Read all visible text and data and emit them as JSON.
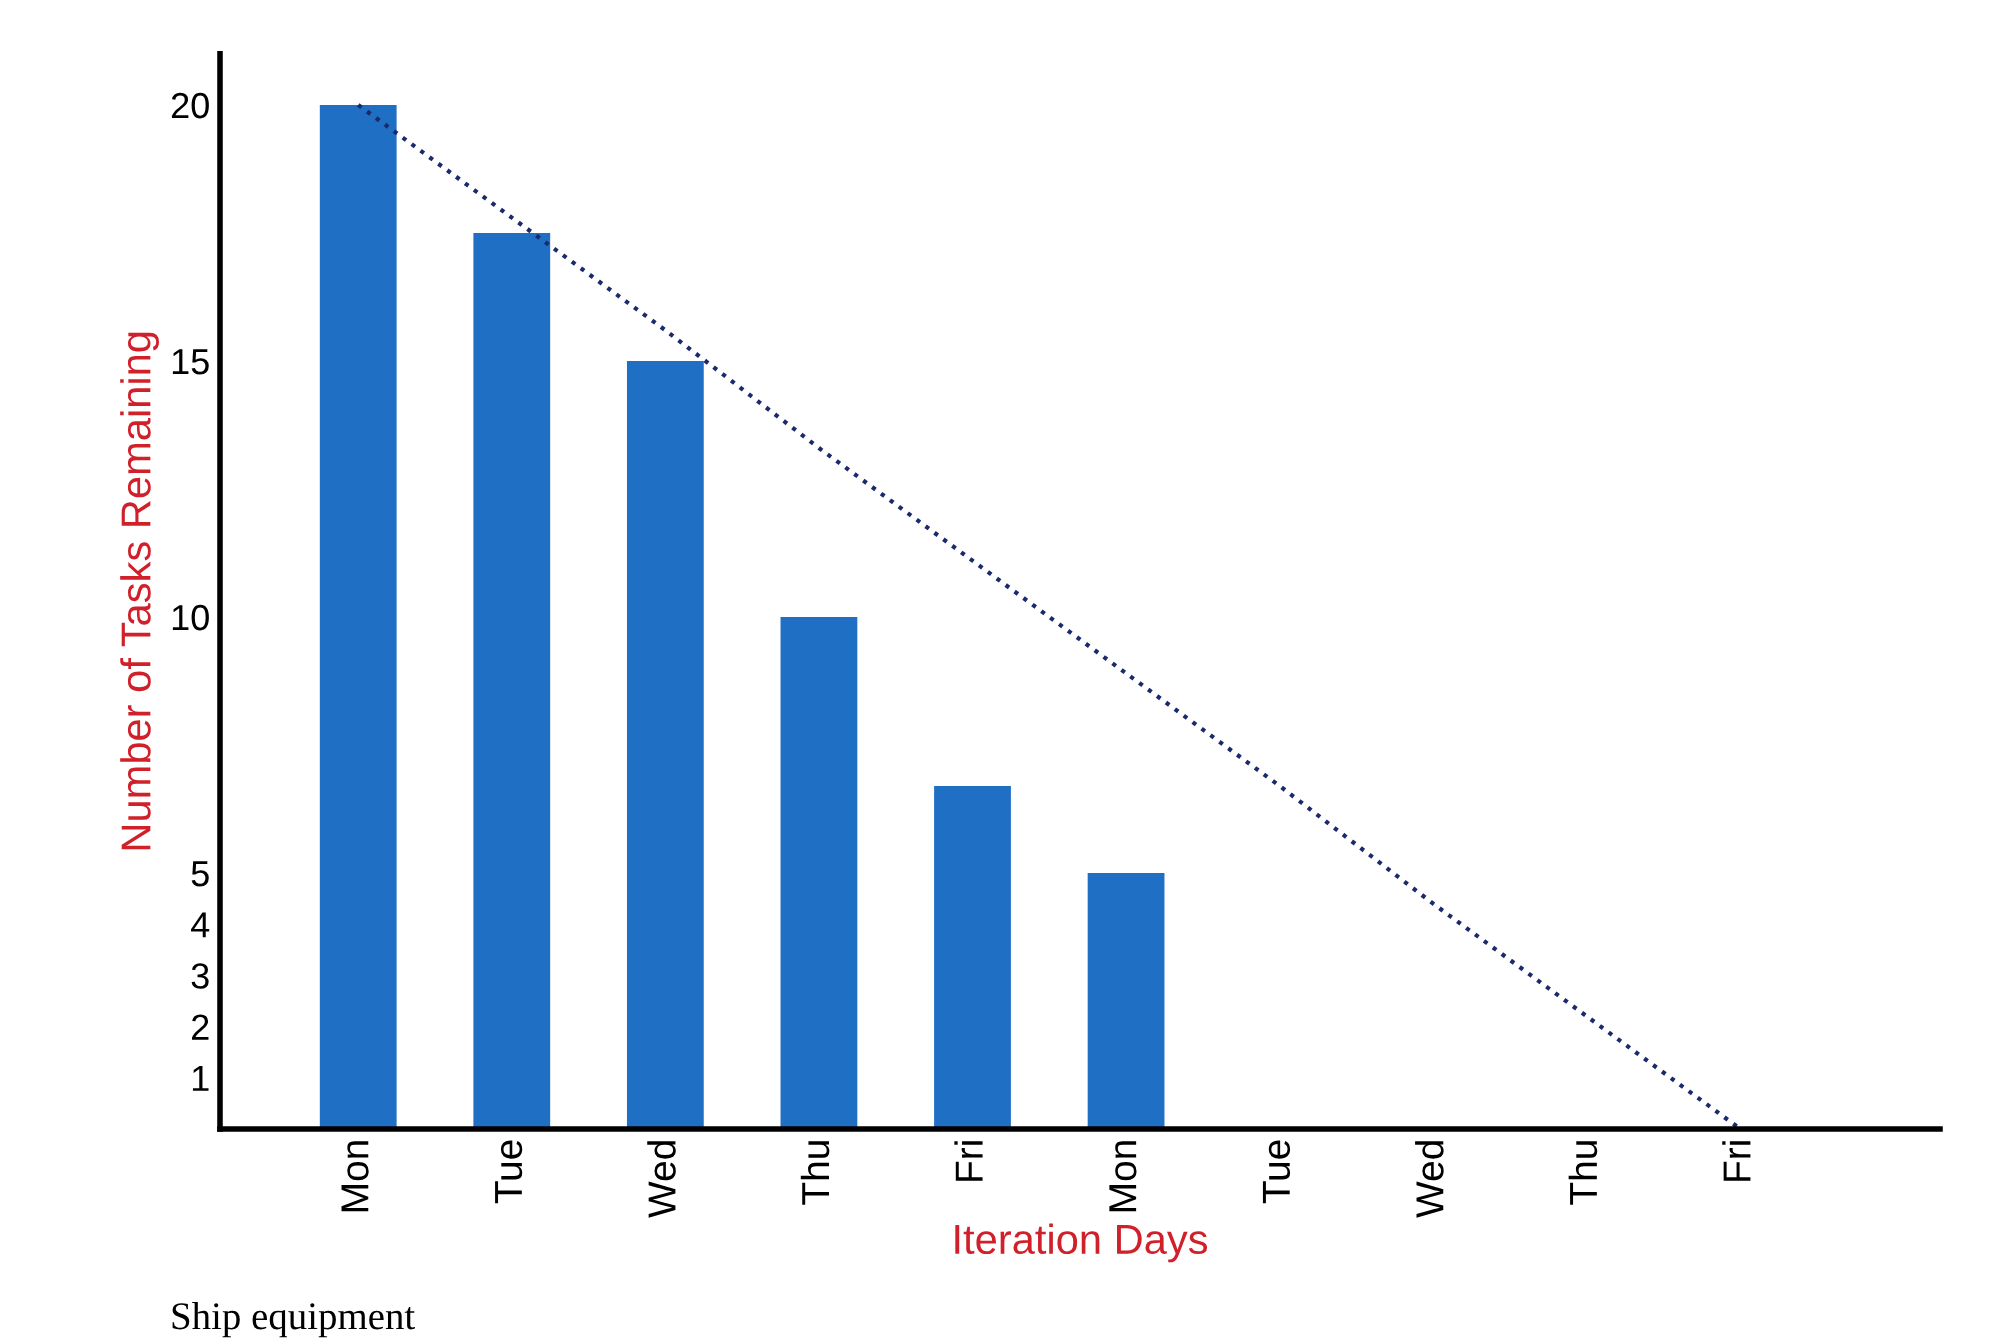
{
  "chart_data": {
    "type": "bar",
    "xlabel": "Iteration Days",
    "ylabel": "Number of Tasks Remaining",
    "categories": [
      "Mon",
      "Tue",
      "Wed",
      "Thu",
      "Fri",
      "Mon",
      "Tue",
      "Wed",
      "Thu",
      "Fri"
    ],
    "series": [
      {
        "color": "#1f6fc5",
        "values": [
          20,
          17.5,
          15,
          10,
          6.7,
          5,
          null,
          null,
          null,
          null
        ]
      },
      {
        "type": "line",
        "color": "#1a2a6c",
        "line_style": "dotted",
        "values": [
          20,
          17.8,
          15.6,
          13.3,
          11.1,
          8.9,
          6.7,
          4.4,
          2.2,
          0
        ]
      }
    ],
    "ylim": [
      0,
      21
    ],
    "yticks": [
      1,
      2,
      3,
      4,
      5,
      10,
      15,
      20
    ],
    "grid": false,
    "annotations": [
      "Ship equipment"
    ]
  }
}
